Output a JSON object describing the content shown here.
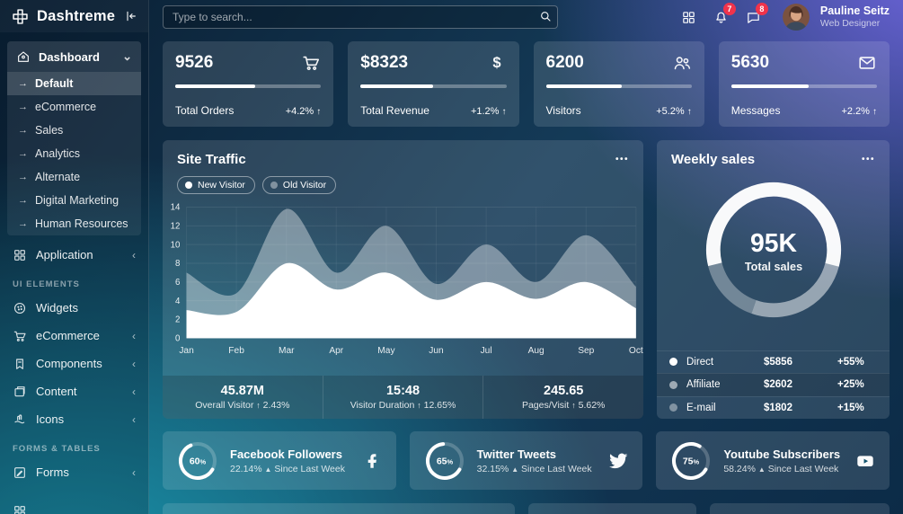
{
  "app": {
    "title": "Dashtreme"
  },
  "theme": {
    "purple": "#6d64db",
    "teal": "#1a96ad",
    "navy_dark": "#0a1f33",
    "navy": "#0c2b47",
    "badge_red": "#f0334b",
    "white": "#ffffff"
  },
  "icons": {
    "up_arrow": "↑",
    "triangle_up": "▲",
    "ellipsis": "•••",
    "chevron_down": "⌄",
    "chevron_left": "‹",
    "arrow_right": "→"
  },
  "header": {
    "search": {
      "placeholder": "Type to search..."
    },
    "bell_badge": "7",
    "chat_badge": "8",
    "user": {
      "name": "Pauline Seitz",
      "role": "Web Designer"
    }
  },
  "sidebar": {
    "dashboard": {
      "label": "Dashboard",
      "items": [
        "Default",
        "eCommerce",
        "Sales",
        "Analytics",
        "Alternate",
        "Digital Marketing",
        "Human Resources"
      ],
      "active_item": "Default"
    },
    "application": {
      "label": "Application"
    },
    "sections": [
      {
        "label": "UI ELEMENTS",
        "items": [
          {
            "label": "Widgets",
            "icon": "cookie-icon",
            "chevron": false
          },
          {
            "label": "eCommerce",
            "icon": "cart-icon",
            "chevron": true
          },
          {
            "label": "Components",
            "icon": "bookmark-icon",
            "chevron": true
          },
          {
            "label": "Content",
            "icon": "content-icon",
            "chevron": true
          },
          {
            "label": "Icons",
            "icon": "hand-icon",
            "chevron": true
          }
        ]
      },
      {
        "label": "FORMS & TABLES",
        "items": [
          {
            "label": "Forms",
            "icon": "pencil-icon",
            "chevron": true
          }
        ]
      }
    ]
  },
  "stats": [
    {
      "value": "9526",
      "label": "Total Orders",
      "delta": "+4.2%",
      "icon": "cart-icon",
      "progress": 55
    },
    {
      "value": "$8323",
      "label": "Total Revenue",
      "delta": "+1.2%",
      "icon": "dollar-icon",
      "progress": 50
    },
    {
      "value": "6200",
      "label": "Visitors",
      "delta": "+5.2%",
      "icon": "people-icon",
      "progress": 52
    },
    {
      "value": "5630",
      "label": "Messages",
      "delta": "+2.2%",
      "icon": "mail-icon",
      "progress": 53
    }
  ],
  "site_traffic": {
    "title": "Site Traffic",
    "footer": [
      {
        "value": "45.87M",
        "label": "Overall Visitor",
        "delta": "2.43%"
      },
      {
        "value": "15:48",
        "label": "Visitor Duration",
        "delta": "12.65%"
      },
      {
        "value": "245.65",
        "label": "Pages/Visit",
        "delta": "5.62%"
      }
    ]
  },
  "weekly_sales": {
    "title": "Weekly sales",
    "center_value": "95K",
    "center_label": "Total sales",
    "rows": [
      {
        "label": "Direct",
        "value": "$5856",
        "delta": "+55%",
        "dot_opacity": 1
      },
      {
        "label": "Affiliate",
        "value": "$2602",
        "delta": "+25%",
        "dot_opacity": 0.55
      },
      {
        "label": "E-mail",
        "value": "$1802",
        "delta": "+15%",
        "dot_opacity": 0.4
      }
    ]
  },
  "social": [
    {
      "progress": 60,
      "title": "Facebook Followers",
      "delta": "22.14%",
      "note": "Since Last Week",
      "icon": "facebook-icon"
    },
    {
      "progress": 65,
      "title": "Twitter Tweets",
      "delta": "32.15%",
      "note": "Since Last Week",
      "icon": "twitter-icon"
    },
    {
      "progress": 75,
      "title": "Youtube Subscribers",
      "delta": "58.24%",
      "note": "Since Last Week",
      "icon": "youtube-icon"
    }
  ],
  "chart_data": [
    {
      "type": "area",
      "title": "Site Traffic",
      "x": [
        "Jan",
        "Feb",
        "Mar",
        "Apr",
        "May",
        "Jun",
        "Jul",
        "Aug",
        "Sep",
        "Oct"
      ],
      "series": [
        {
          "name": "New Visitor",
          "values": [
            3,
            2.8,
            8,
            5.2,
            7,
            4.1,
            6,
            4.2,
            6,
            3.2
          ]
        },
        {
          "name": "Old Visitor",
          "values": [
            7,
            4.8,
            13.8,
            7,
            12,
            5.8,
            10,
            6,
            11,
            5.5
          ]
        }
      ],
      "ylim": [
        0,
        14
      ],
      "yticks": [
        0,
        2,
        4,
        6,
        8,
        10,
        12,
        14
      ],
      "grid": true,
      "legend_position": "top-left"
    },
    {
      "type": "donut",
      "title": "Weekly sales",
      "center_value": "95K",
      "center_label": "Total sales",
      "segments": [
        {
          "label": "Direct",
          "amount": 5856,
          "percent": 55
        },
        {
          "label": "Affiliate",
          "amount": 2602,
          "percent": 25
        },
        {
          "label": "E-mail",
          "amount": 1802,
          "percent": 15
        }
      ]
    },
    {
      "type": "gauge",
      "title": "Facebook Followers",
      "value": 60,
      "max": 100
    },
    {
      "type": "gauge",
      "title": "Twitter Tweets",
      "value": 65,
      "max": 100
    },
    {
      "type": "gauge",
      "title": "Youtube Subscribers",
      "value": 75,
      "max": 100
    }
  ]
}
